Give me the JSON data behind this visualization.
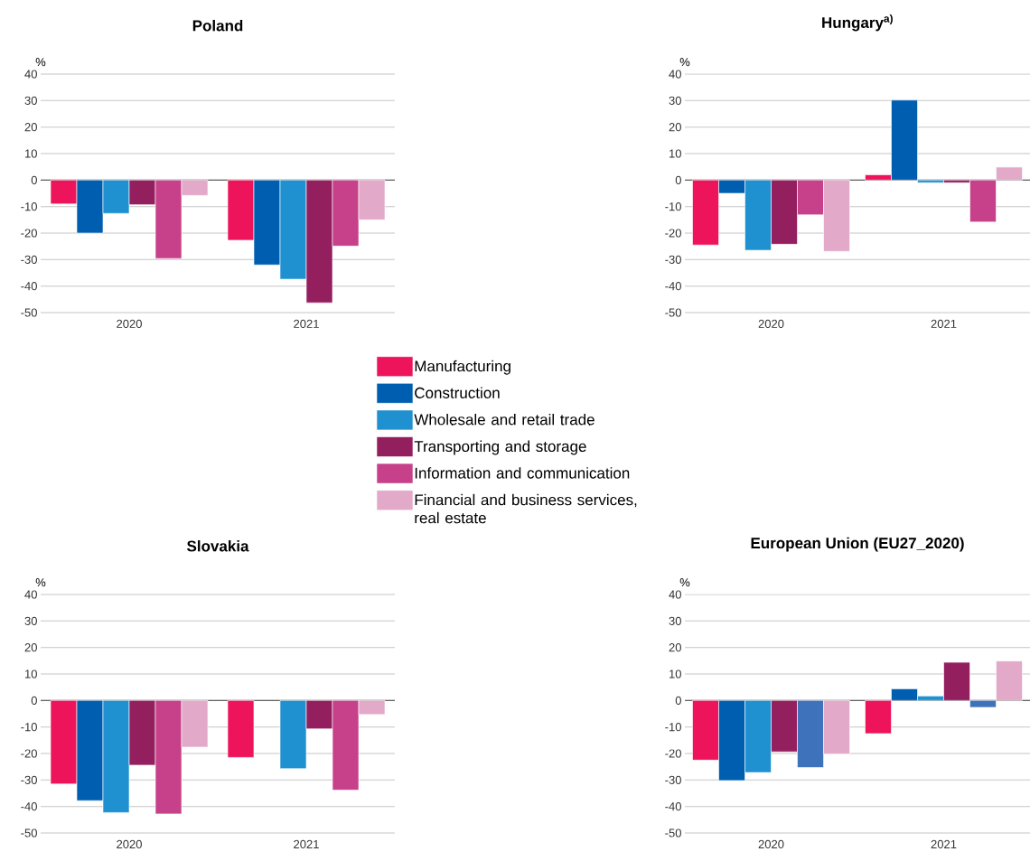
{
  "chart_data": [
    {
      "type": "bar",
      "title": "Poland",
      "ylabel": "%",
      "categories": [
        "2020",
        "2021"
      ],
      "ylim": [
        -50,
        40
      ],
      "yticks": [
        -50,
        -40,
        -30,
        -20,
        -10,
        0,
        10,
        20,
        30,
        40
      ],
      "grid": "y",
      "legend": "bottom right",
      "series": [
        {
          "name": "Manufacturing",
          "color": "#ee145b",
          "values": [
            -9,
            -22.7
          ]
        },
        {
          "name": "Construction",
          "color": "#005eb0",
          "values": [
            -20,
            -32
          ]
        },
        {
          "name": "Wholesale and retail trade",
          "color": "#1f91d0",
          "values": [
            -12.6,
            -37.4
          ]
        },
        {
          "name": "Transporting and storage",
          "color": "#941f5f",
          "values": [
            -9.3,
            -46.3
          ]
        },
        {
          "name": "Information and communication",
          "color": "#c7408a",
          "values": [
            -29.6,
            -24.9
          ]
        },
        {
          "name": "Financial and business services, real estate",
          "color": "#e3a9c8",
          "values": [
            -5.8,
            -15
          ]
        }
      ]
    },
    {
      "type": "bar",
      "title": "Hungary$^{a)}$",
      "ylabel": "%",
      "categories": [
        "2020",
        "2021"
      ],
      "ylim": [
        -50,
        40
      ],
      "yticks": [
        -50,
        -40,
        -30,
        -20,
        -10,
        0,
        10,
        20,
        30,
        40
      ],
      "grid": "y",
      "series": [
        {
          "color": "#ee145b",
          "values": [
            -24.5,
            2
          ]
        },
        {
          "color": "#005eb0",
          "values": [
            -5,
            30.2
          ]
        },
        {
          "color": "#1f91d0",
          "values": [
            -26.5,
            -1
          ]
        },
        {
          "color": "#941f5f",
          "values": [
            -24.2,
            -1
          ]
        },
        {
          "color": "#c7408a",
          "values": [
            -13.1,
            -15.8
          ]
        },
        {
          "color": "#e3a9c8",
          "values": [
            -26.9,
            4.9
          ]
        }
      ]
    },
    {
      "type": "bar",
      "title": "Slovakia",
      "ylabel": "%",
      "categories": [
        "2020",
        "2021"
      ],
      "ylim": [
        -50,
        40
      ],
      "yticks": [
        -50,
        -40,
        -30,
        -20,
        -10,
        0,
        10,
        20,
        30,
        40
      ],
      "grid": "y",
      "series": [
        {
          "color": "#ee145b",
          "values": [
            -31.5,
            -21.5
          ]
        },
        {
          "color": "#005eb0",
          "values": [
            -37.8,
            null
          ]
        },
        {
          "color": "#1f91d0",
          "values": [
            -42.3,
            -25.7
          ]
        },
        {
          "color": "#941f5f",
          "values": [
            -24.4,
            -10.7
          ]
        },
        {
          "color": "#c7408a",
          "values": [
            -42.8,
            -33.8
          ]
        },
        {
          "color": "#e3a9c8",
          "values": [
            -17.6,
            -5.3
          ]
        }
      ]
    },
    {
      "type": "bar",
      "title": "European Union (EU27_2020)",
      "ylabel": "%",
      "categories": [
        "2020",
        "2021"
      ],
      "ylim": [
        -50,
        40
      ],
      "yticks": [
        -50,
        -40,
        -30,
        -20,
        -10,
        0,
        10,
        20,
        30,
        40
      ],
      "grid": "y",
      "series": [
        {
          "color": "#ee145b",
          "values": [
            -22.5,
            -12.5
          ]
        },
        {
          "color": "#005eb0",
          "values": [
            -30.2,
            4.4
          ]
        },
        {
          "color": "#1f91d0",
          "values": [
            -27.2,
            1.7
          ]
        },
        {
          "color": "#941f5f",
          "values": [
            -19.4,
            14.4
          ]
        },
        {
          "color": "#3e72bb",
          "values": [
            -25.3,
            -2.6
          ]
        },
        {
          "color": "#e3a9c8",
          "values": [
            -20.2,
            14.9
          ]
        }
      ]
    }
  ]
}
